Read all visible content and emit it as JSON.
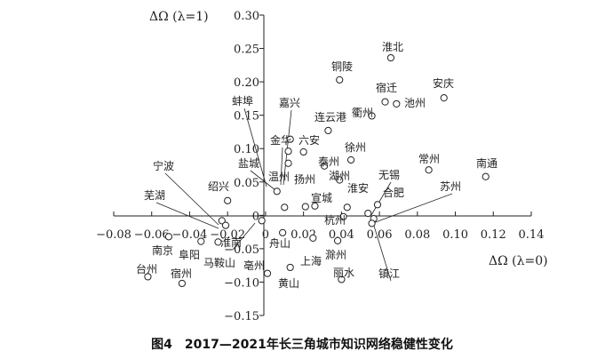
{
  "chart_data": {
    "type": "scatter",
    "xlabel": "ΔΩ (λ=0)",
    "ylabel": "ΔΩ (λ=1)",
    "caption": "图4　2017—2021年长三角城市知识网络稳健性变化",
    "xlim": [
      -0.08,
      0.14
    ],
    "ylim": [
      -0.15,
      0.3
    ],
    "xticks": [
      "−0.08",
      "−0.06",
      "−0.04",
      "−0.02",
      "0",
      "0.02",
      "0.04",
      "0.06",
      "0.08",
      "0.10",
      "0.12",
      "0.14"
    ],
    "yticks": [
      "0.30",
      "0.25",
      "0.20",
      "0.15",
      "0.10",
      "0.05",
      "0",
      "−0.05",
      "−0.10",
      "−0.15"
    ],
    "grid": false,
    "points": [
      {
        "name": "淮北",
        "x": 0.066,
        "y": 0.236
      },
      {
        "name": "铜陵",
        "x": 0.039,
        "y": 0.203
      },
      {
        "name": "安庆",
        "x": 0.094,
        "y": 0.176
      },
      {
        "name": "宿迁",
        "x": 0.063,
        "y": 0.17
      },
      {
        "name": "池州",
        "x": 0.069,
        "y": 0.167
      },
      {
        "name": "衢州",
        "x": 0.056,
        "y": 0.149
      },
      {
        "name": "连云港",
        "x": 0.033,
        "y": 0.127
      },
      {
        "name": "蚌埠",
        "x": 0.012,
        "y": 0.096
      },
      {
        "name": "嘉兴",
        "x": 0.013,
        "y": 0.114
      },
      {
        "name": "六安",
        "x": 0.02,
        "y": 0.095
      },
      {
        "name": "金华",
        "x": 0.012,
        "y": 0.078
      },
      {
        "name": "徐州",
        "x": 0.045,
        "y": 0.083
      },
      {
        "name": "泰州",
        "x": 0.031,
        "y": 0.074
      },
      {
        "name": "常州",
        "x": 0.086,
        "y": 0.068
      },
      {
        "name": "盐城",
        "x": 0.006,
        "y": 0.036
      },
      {
        "name": "温州",
        "x": 0.01,
        "y": 0.012
      },
      {
        "name": "扬州",
        "x": 0.021,
        "y": 0.013
      },
      {
        "name": "湖州",
        "x": 0.039,
        "y": 0.053
      },
      {
        "name": "南通",
        "x": 0.116,
        "y": 0.058
      },
      {
        "name": "无锡",
        "x": 0.054,
        "y": 0.003
      },
      {
        "name": "合肥",
        "x": 0.059,
        "y": 0.016
      },
      {
        "name": "苏州",
        "x": 0.057,
        "y": -0.005
      },
      {
        "name": "宁波",
        "x": -0.023,
        "y": -0.008
      },
      {
        "name": "绍兴",
        "x": -0.02,
        "y": 0.022
      },
      {
        "name": "芜湖",
        "x": -0.021,
        "y": -0.015
      },
      {
        "name": "宣城",
        "x": 0.026,
        "y": 0.014
      },
      {
        "name": "淮安",
        "x": 0.043,
        "y": 0.012
      },
      {
        "name": "杭州",
        "x": 0.041,
        "y": -0.002
      },
      {
        "name": "舟山",
        "x": 0.009,
        "y": -0.026
      },
      {
        "name": "淮南",
        "x": -0.002,
        "y": -0.008
      },
      {
        "name": "南京",
        "x": -0.051,
        "y": -0.032
      },
      {
        "name": "阜阳",
        "x": -0.034,
        "y": -0.039
      },
      {
        "name": "马鞍山",
        "x": -0.025,
        "y": -0.04
      },
      {
        "name": "滁州",
        "x": 0.038,
        "y": -0.038
      },
      {
        "name": "上海",
        "x": 0.025,
        "y": -0.034
      },
      {
        "name": "镇江",
        "x": 0.056,
        "y": -0.012
      },
      {
        "name": "亳州",
        "x": 0.001,
        "y": -0.087
      },
      {
        "name": "黄山",
        "x": 0.013,
        "y": -0.078
      },
      {
        "name": "丽水",
        "x": 0.04,
        "y": -0.096
      },
      {
        "name": "台州",
        "x": -0.062,
        "y": -0.092
      },
      {
        "name": "宿州",
        "x": -0.044,
        "y": -0.102
      }
    ]
  }
}
